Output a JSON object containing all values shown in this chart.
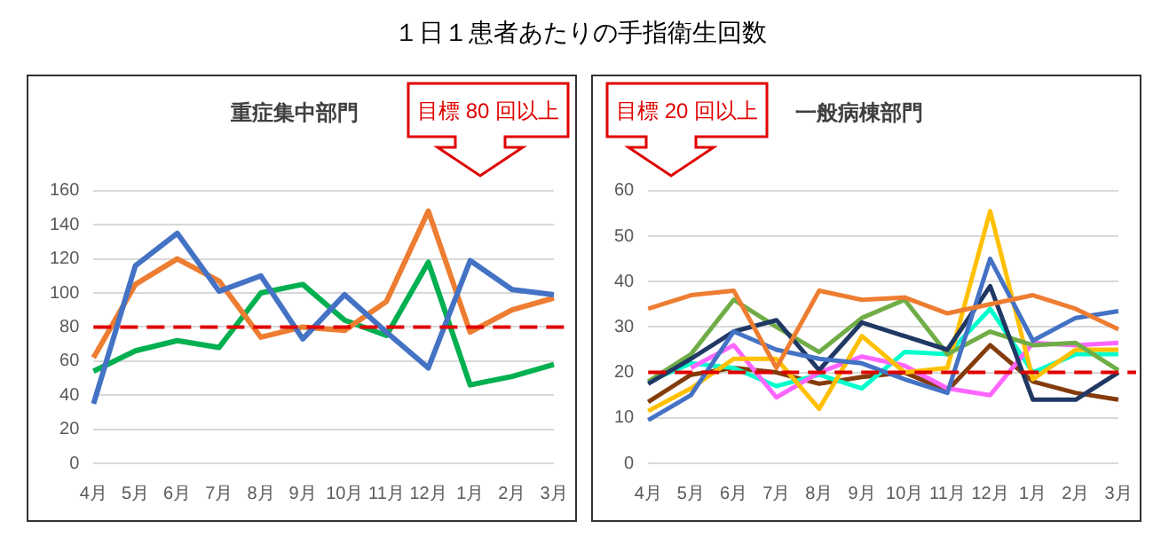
{
  "chart_data": [
    {
      "type": "other",
      "title": "１日１患者あたりの手指衛生回数"
    },
    {
      "type": "line",
      "title": "重症集中部門",
      "categories": [
        "4月",
        "5月",
        "6月",
        "7月",
        "8月",
        "9月",
        "10月",
        "11月",
        "12月",
        "1月",
        "2月",
        "3月"
      ],
      "series": [
        {
          "color": "#4472c4",
          "values": [
            35,
            116,
            135,
            101,
            110,
            73,
            99,
            77,
            56,
            119,
            102,
            99
          ]
        },
        {
          "color": "#ed7d31",
          "values": [
            62,
            105,
            120,
            107,
            74,
            80,
            78,
            95,
            148,
            77,
            90,
            97
          ]
        },
        {
          "color": "#00b050",
          "values": [
            54,
            66,
            72,
            68,
            100,
            105,
            84,
            75,
            118,
            46,
            51,
            58
          ]
        }
      ],
      "ylim": [
        0,
        160
      ],
      "yticks": [
        0,
        20,
        40,
        60,
        80,
        100,
        120,
        140,
        160
      ],
      "grid": "y",
      "legend": false,
      "marker": "none",
      "ref_lines": [
        {
          "axis": "y",
          "value": 80,
          "color": "#e00000",
          "line_style": "dashed"
        }
      ],
      "annotations": [
        "目標 80 回以上"
      ]
    },
    {
      "type": "line",
      "title": "一般病棟部門",
      "categories": [
        "4月",
        "5月",
        "6月",
        "7月",
        "8月",
        "9月",
        "10月",
        "11月",
        "12月",
        "1月",
        "2月",
        "3月"
      ],
      "series": [
        {
          "color": "#ed7d31",
          "values": [
            34,
            37,
            38,
            21,
            38,
            36,
            36.5,
            33,
            35,
            37,
            34,
            29.5
          ]
        },
        {
          "color": "#4472c4",
          "values": [
            9.5,
            15,
            29,
            25,
            23,
            22,
            18.5,
            15.5,
            45,
            27,
            32,
            33.5
          ]
        },
        {
          "color": "#203864",
          "values": [
            17.5,
            23,
            29,
            31.5,
            20.5,
            31,
            28,
            25,
            39,
            14,
            14,
            20
          ]
        },
        {
          "color": "#70ad47",
          "values": [
            18,
            24,
            36,
            30,
            24.5,
            32,
            36,
            24,
            29,
            26,
            26.5,
            20.5
          ]
        },
        {
          "color": "#ffc000",
          "values": [
            11.5,
            16.5,
            23,
            23,
            12,
            28,
            20,
            21,
            55.5,
            18.5,
            25,
            25
          ]
        },
        {
          "color": "#ff66ff",
          "values": [
            null,
            21,
            26,
            14.5,
            20,
            23.5,
            21.5,
            16.5,
            15,
            26.5,
            26,
            26.5
          ]
        },
        {
          "color": "#00ffcc",
          "values": [
            18,
            22,
            21,
            17,
            19.5,
            16.5,
            24.5,
            24,
            34,
            20,
            24,
            24
          ]
        },
        {
          "color": "#843c0c",
          "values": [
            13.5,
            19.5,
            21,
            20,
            17.5,
            19,
            20,
            16,
            26,
            18,
            15.5,
            14
          ]
        }
      ],
      "ylim": [
        0,
        60
      ],
      "yticks": [
        0,
        10,
        20,
        30,
        40,
        50,
        60
      ],
      "grid": "y",
      "legend": false,
      "marker": "none",
      "ref_lines": [
        {
          "axis": "y",
          "value": 20,
          "color": "#e00000",
          "line_style": "dashed"
        }
      ],
      "annotations": [
        "目標 20 回以上"
      ]
    }
  ]
}
